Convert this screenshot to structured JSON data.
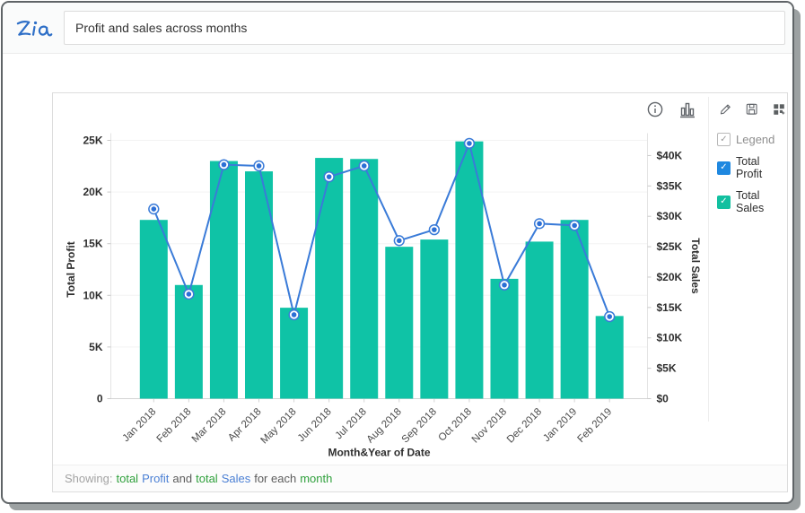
{
  "topbar": {
    "logo": "Zia",
    "query": "Profit and sales across months"
  },
  "toolbar": {
    "icons": [
      "info-icon",
      "chart-type-icon",
      "edit-icon",
      "save-icon",
      "add-to-dashboard-icon"
    ]
  },
  "legend": {
    "title": "Legend",
    "items": [
      {
        "label": "Total Profit",
        "color": "#1f88e0"
      },
      {
        "label": "Total Sales",
        "color": "#12c0a0"
      }
    ]
  },
  "footer": {
    "prefix": "Showing:",
    "t1": "total",
    "s1": "Profit",
    "conj": "and",
    "t2": "total",
    "s2": "Sales",
    "suffix": "for each",
    "dim": "month"
  },
  "chart_data": {
    "type": "bar+line combo",
    "categories": [
      "Jan 2018",
      "Feb 2018",
      "Mar 2018",
      "Apr 2018",
      "May 2018",
      "Jun 2018",
      "Jul 2018",
      "Aug 2018",
      "Sep 2018",
      "Oct 2018",
      "Nov 2018",
      "Dec 2018",
      "Jan 2019",
      "Feb 2019"
    ],
    "series": [
      {
        "name": "Total Profit",
        "type": "bar",
        "axis": "left",
        "color": "#0fc3a6",
        "values": [
          17300,
          11000,
          23000,
          22000,
          8800,
          23300,
          23200,
          14700,
          15400,
          24900,
          11600,
          15200,
          17300,
          8000
        ]
      },
      {
        "name": "Total Sales",
        "type": "line",
        "axis": "right",
        "color": "#3a7bd8",
        "marker_fill": "#2c6fd6",
        "values": [
          31200,
          17200,
          38500,
          38300,
          13800,
          36500,
          38300,
          26000,
          27800,
          42000,
          18700,
          28800,
          28500,
          13500
        ]
      }
    ],
    "left_axis": {
      "label": "Total Profit",
      "min": 0,
      "max": 25000,
      "tick_step": 5000,
      "ticks": [
        "0",
        "5K",
        "10K",
        "15K",
        "20K",
        "25K"
      ]
    },
    "right_axis": {
      "label": "Total Sales",
      "min": 0,
      "max": 42500,
      "tick_step": 5000,
      "ticks": [
        "$0",
        "$5K",
        "$10K",
        "$15K",
        "$20K",
        "$25K",
        "$30K",
        "$35K",
        "$40K"
      ]
    },
    "x_axis": {
      "label": "Month&Year of Date"
    },
    "grid": true,
    "legend_position": "right"
  }
}
